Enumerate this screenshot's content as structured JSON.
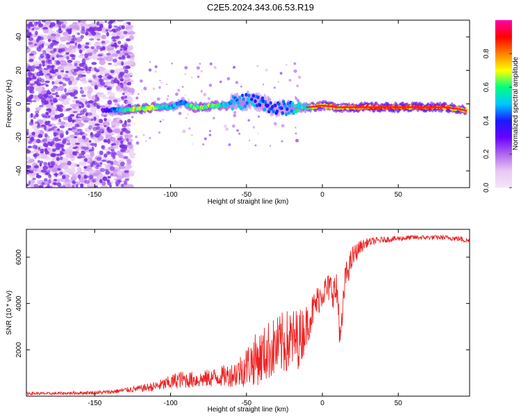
{
  "figure_title": "C2E5.2024.343.06.53.R19",
  "colors": {
    "snr_line": "#ee2222",
    "spectrogram_scatter": "#7a2ee6",
    "spectrogram_ridge_peak": "#ff2020",
    "colormap": [
      "#f2e6fa",
      "#e8c8f2",
      "#b066ee",
      "#6a00ff",
      "#1a1aff",
      "#00c8ff",
      "#00ff80",
      "#ffff00",
      "#ff8000",
      "#ff0000",
      "#ff00aa"
    ]
  },
  "chart_data": [
    {
      "type": "heatmap",
      "title": "",
      "xlabel": "Height of straight line (km)",
      "ylabel": "Frequency (Hz)",
      "xlim": [
        -195,
        97
      ],
      "ylim": [
        -50,
        50
      ],
      "x_ticks": [
        -150,
        -100,
        -50,
        0,
        50
      ],
      "y_ticks": [
        -40,
        -20,
        0,
        20,
        40
      ],
      "colorbar": {
        "label": "Normalized spectral amplitude",
        "range": [
          0,
          1
        ],
        "ticks": [
          0.0,
          0.2,
          0.4,
          0.6,
          0.8
        ]
      },
      "ridge": {
        "x": [
          -145,
          -135,
          -120,
          -110,
          -100,
          -92,
          -85,
          -80,
          -70,
          -60,
          -50,
          -40,
          -30,
          -20,
          -10,
          0,
          10,
          20,
          40,
          60,
          80,
          90,
          95
        ],
        "freq": [
          -4,
          -3.5,
          -3,
          -2,
          -2,
          1,
          -2,
          -2,
          -1,
          0,
          2,
          1,
          -3,
          -2,
          -2,
          -1,
          -2,
          -2,
          -2,
          -2,
          -2,
          -3,
          -4
        ],
        "amplitude": [
          0.3,
          0.55,
          0.8,
          0.7,
          0.6,
          0.5,
          0.7,
          0.75,
          0.65,
          0.55,
          0.55,
          0.5,
          0.45,
          0.55,
          0.7,
          0.9,
          0.85,
          0.9,
          0.95,
          0.95,
          0.95,
          0.85,
          0.8
        ]
      },
      "noise_region": {
        "x_range": [
          -195,
          -135
        ],
        "freq_range": [
          -50,
          50
        ],
        "amplitude": [
          0.05,
          0.35
        ]
      }
    },
    {
      "type": "line",
      "title": "",
      "xlabel": "Height of straight line (km)",
      "ylabel": "SNR (10 * v/v)",
      "xlim": [
        -195,
        97
      ],
      "ylim": [
        0,
        7200
      ],
      "x_ticks": [
        -150,
        -100,
        -50,
        0,
        50
      ],
      "y_ticks": [
        2000,
        4000,
        6000
      ],
      "series": [
        {
          "x": [
            -195,
            -180,
            -160,
            -150,
            -140,
            -130,
            -120,
            -110,
            -100,
            -95,
            -90,
            -80,
            -70,
            -60,
            -55,
            -50,
            -45,
            -40,
            -35,
            -30,
            -25,
            -20,
            -15,
            -10,
            -5,
            0,
            5,
            10,
            12,
            15,
            20,
            25,
            30,
            40,
            50,
            60,
            70,
            80,
            90,
            97
          ],
          "values": [
            120,
            110,
            140,
            150,
            180,
            260,
            330,
            420,
            580,
            720,
            700,
            720,
            820,
            920,
            1050,
            1300,
            1550,
            1700,
            2000,
            2100,
            2300,
            2400,
            2500,
            3100,
            3900,
            4500,
            4700,
            4400,
            2300,
            5100,
            6000,
            6450,
            6650,
            6750,
            6800,
            6850,
            6850,
            6850,
            6800,
            6700
          ],
          "noise_amp": [
            70,
            60,
            70,
            80,
            90,
            110,
            150,
            220,
            320,
            380,
            360,
            360,
            420,
            520,
            700,
            900,
            1100,
            1200,
            1300,
            1350,
            1400,
            1400,
            1300,
            900,
            700,
            650,
            650,
            900,
            700,
            600,
            500,
            280,
            180,
            130,
            120,
            110,
            100,
            100,
            120,
            140
          ]
        }
      ]
    }
  ]
}
